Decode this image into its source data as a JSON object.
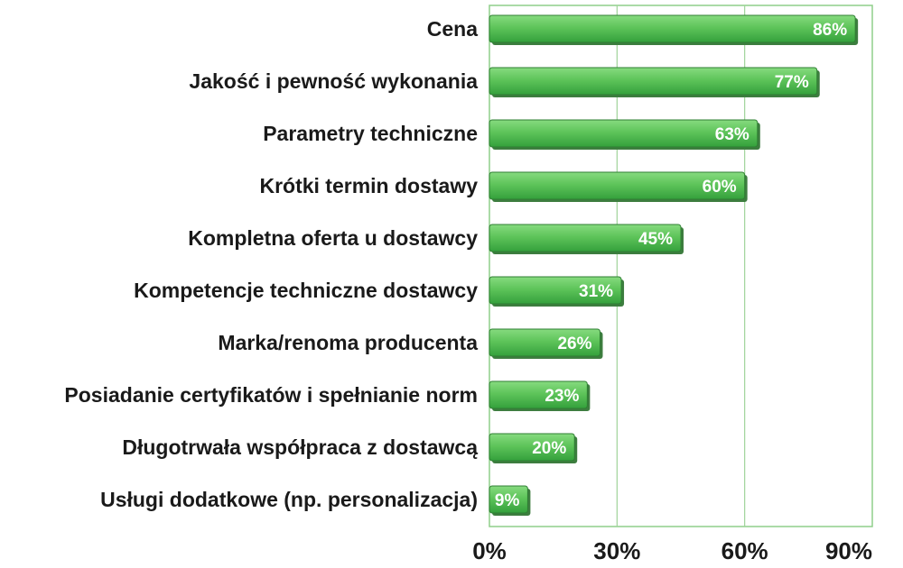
{
  "chart_data": {
    "type": "bar",
    "orientation": "horizontal",
    "categories": [
      "Cena",
      "Jakość i pewność wykonania",
      "Parametry techniczne",
      "Krótki termin dostawy",
      "Kompletna oferta u dostawcy",
      "Kompetencje techniczne dostawcy",
      "Marka/renoma producenta",
      "Posiadanie certyfikatów i spełnianie norm",
      "Długotrwała współpraca z dostawcą",
      "Usługi dodatkowe (np. personalizacja)"
    ],
    "values": [
      86,
      77,
      63,
      60,
      45,
      31,
      26,
      23,
      20,
      9
    ],
    "value_labels": [
      "86%",
      "77%",
      "63%",
      "60%",
      "45%",
      "31%",
      "26%",
      "23%",
      "20%",
      "9%"
    ],
    "xlim": [
      0,
      90
    ],
    "x_ticks": [
      0,
      30,
      60,
      90
    ],
    "x_tick_labels": [
      "0%",
      "30%",
      "60%",
      "90%"
    ],
    "grid": true,
    "colors": {
      "bar_light": "#6fd06a",
      "bar_dark": "#2e9a3a",
      "bar_edge": "#2f7f33",
      "grid": "#9fd39a",
      "frame": "#8fcf8a"
    }
  }
}
